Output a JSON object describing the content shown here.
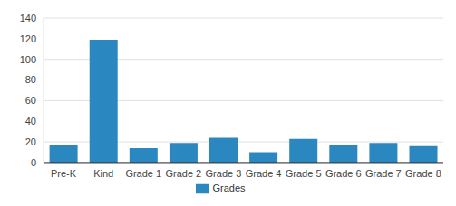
{
  "chart_data": {
    "type": "bar",
    "categories": [
      "Pre-K",
      "Kind",
      "Grade 1",
      "Grade 2",
      "Grade 3",
      "Grade 4",
      "Grade 5",
      "Grade 6",
      "Grade 7",
      "Grade 8"
    ],
    "series": [
      {
        "name": "Grades",
        "color": "#2a87c0",
        "values": [
          17,
          119,
          14,
          19,
          24,
          10,
          23,
          17,
          19,
          16
        ]
      }
    ],
    "ylim": [
      0,
      140
    ],
    "yticks": [
      0,
      20,
      40,
      60,
      80,
      100,
      120,
      140
    ],
    "grid": true,
    "legend": "bottom"
  }
}
